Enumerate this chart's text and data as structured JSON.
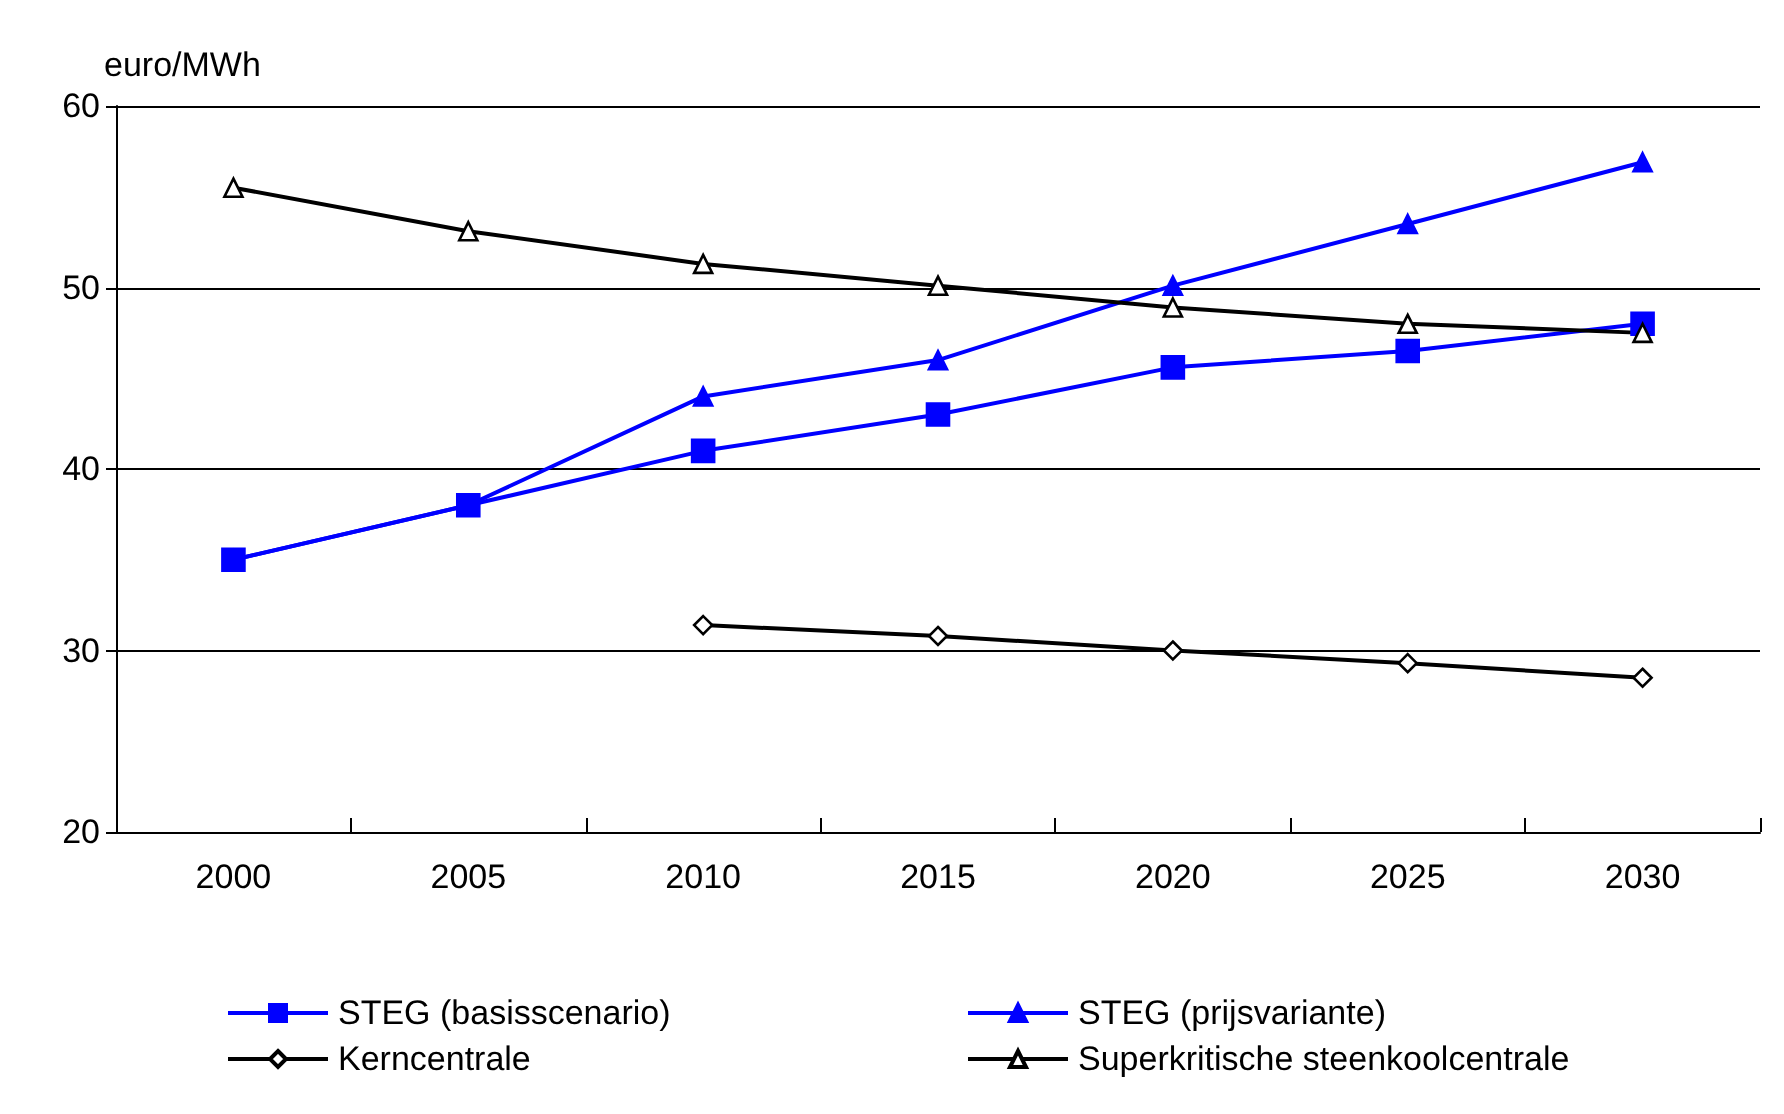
{
  "chart_data": {
    "type": "line",
    "ylabel": "euro/MWh",
    "categories": [
      "2000",
      "2005",
      "2010",
      "2015",
      "2020",
      "2025",
      "2030"
    ],
    "ylim": [
      20,
      60
    ],
    "yticks": [
      20,
      30,
      40,
      50,
      60
    ],
    "grid": "y",
    "legend": "bottom",
    "series": [
      {
        "name": "STEG (basisscenario)",
        "color": "#0000ff",
        "marker": "square",
        "values": [
          35,
          38,
          41,
          43,
          45.6,
          46.5,
          48
        ]
      },
      {
        "name": "STEG (prijsvariante)",
        "color": "#0000ff",
        "marker": "triangle",
        "values": [
          35,
          38,
          44,
          46,
          50.1,
          53.5,
          56.9
        ]
      },
      {
        "name": "Kerncentrale",
        "color": "#000000",
        "marker": "diamond",
        "values": [
          null,
          null,
          31.4,
          30.8,
          30,
          29.3,
          28.5
        ]
      },
      {
        "name": "Superkritische steenkoolcentrale",
        "color": "#000000",
        "marker": "triangle",
        "values": [
          55.5,
          53.1,
          51.3,
          50.1,
          48.9,
          48,
          47.5
        ]
      }
    ]
  }
}
